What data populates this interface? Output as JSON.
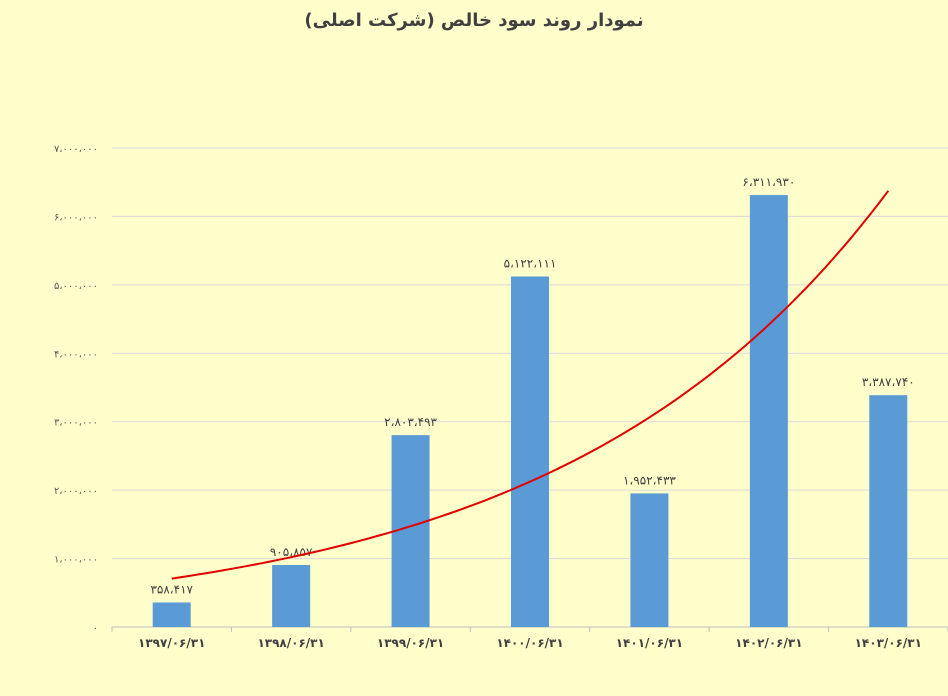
{
  "chart_data": {
    "type": "bar",
    "title": "نمودار روند سود خالص (شرکت اصلی)",
    "categories": [
      "۱۳۹۷/۰۶/۳۱",
      "۱۳۹۸/۰۶/۳۱",
      "۱۳۹۹/۰۶/۳۱",
      "۱۴۰۰/۰۶/۳۱",
      "۱۴۰۱/۰۶/۳۱",
      "۱۴۰۲/۰۶/۳۱",
      "۱۴۰۳/۰۶/۳۱"
    ],
    "values": [
      358417,
      905857,
      2803493,
      5122111,
      1952433,
      6311930,
      3387740
    ],
    "data_labels": [
      "۳۵۸،۴۱۷",
      "۹۰۵،۸۵۷",
      "۲،۸۰۳،۴۹۳",
      "۵،۱۲۲،۱۱۱",
      "۱،۹۵۲،۴۳۳",
      "۶،۳۱۱،۹۳۰",
      "۳،۳۸۷،۷۴۰"
    ],
    "ylim": [
      0,
      7000000
    ],
    "yticks": [
      0,
      1000000,
      2000000,
      3000000,
      4000000,
      5000000,
      6000000,
      7000000
    ],
    "ytick_labels": [
      "۰",
      "۱،۰۰۰،۰۰۰",
      "۲،۰۰۰،۰۰۰",
      "۳،۰۰۰،۰۰۰",
      "۴،۰۰۰،۰۰۰",
      "۵،۰۰۰،۰۰۰",
      "۶،۰۰۰،۰۰۰",
      "۷،۰۰۰،۰۰۰"
    ],
    "grid": true,
    "trendline": {
      "type": "exponential",
      "color": "#E00000"
    },
    "bar_color": "#5B9BD5",
    "background_color": "#FFFFCC"
  }
}
